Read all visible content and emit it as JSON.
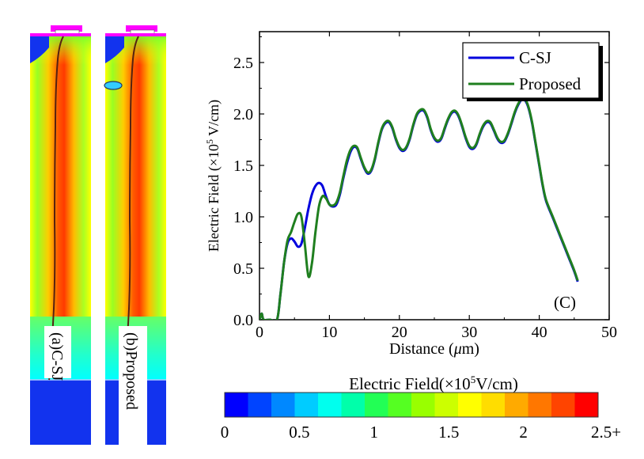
{
  "panels": {
    "a": {
      "label": "(a)C-SJ"
    },
    "b": {
      "label": "(b)Proposed"
    }
  },
  "colorbar": {
    "title_prefix": "Electric Field(×10",
    "title_exp": "5",
    "title_suffix": "V/cm)",
    "ticks": [
      "0",
      "0.5",
      "1",
      "1.5",
      "2",
      "2.5+"
    ],
    "colors": [
      "#0000ff",
      "#0044ff",
      "#0088ff",
      "#00ccff",
      "#00ffee",
      "#00ffaa",
      "#22ff55",
      "#55ff22",
      "#99ff00",
      "#ccff00",
      "#ffff00",
      "#ffdd00",
      "#ffaa00",
      "#ff7700",
      "#ff4400",
      "#ff0000"
    ]
  },
  "chart_data": {
    "type": "line",
    "panel_label": "(C)",
    "xlabel_prefix": "Distance (",
    "xlabel_mu": "μ",
    "xlabel_suffix": "m)",
    "ylabel_prefix": "Electric Field (×10",
    "ylabel_exp": "5",
    "ylabel_suffix": " V/cm)",
    "xlim": [
      0,
      50
    ],
    "ylim": [
      0,
      2.8
    ],
    "xticks": [
      0,
      10,
      20,
      30,
      40,
      50
    ],
    "yticks": [
      0.0,
      0.5,
      1.0,
      1.5,
      2.0,
      2.5
    ],
    "ytick_labels": [
      "0.0",
      "0.5",
      "1.0",
      "1.5",
      "2.0",
      "2.5"
    ],
    "legend_position": "top-right",
    "series": [
      {
        "name": "C-SJ",
        "color": "#0000dd",
        "x": [
          0,
          0.3,
          0.6,
          1.5,
          2.5,
          3.0,
          3.5,
          4.0,
          4.5,
          5.0,
          5.5,
          6.0,
          6.5,
          7.0,
          7.5,
          8.0,
          8.5,
          9.0,
          9.5,
          10.0,
          10.5,
          11.0,
          11.5,
          12.0,
          12.5,
          13.0,
          13.5,
          14.0,
          14.5,
          15.0,
          15.5,
          16.0,
          16.5,
          17.0,
          17.5,
          18.0,
          18.5,
          19.0,
          19.5,
          20.0,
          20.5,
          21.0,
          21.5,
          22.0,
          22.5,
          23.0,
          23.5,
          24.0,
          24.5,
          25.0,
          25.5,
          26.0,
          26.5,
          27.0,
          27.5,
          28.0,
          28.5,
          29.0,
          29.5,
          30.0,
          30.5,
          31.0,
          31.5,
          32.0,
          32.5,
          33.0,
          33.5,
          34.0,
          34.5,
          35.0,
          35.5,
          36.0,
          36.5,
          37.0,
          37.5,
          38.0,
          38.5,
          39.0,
          39.5,
          40.0,
          40.5,
          41.0,
          42.0,
          43.0,
          44.0,
          45.0,
          45.5
        ],
        "values": [
          0.0,
          0.06,
          0.0,
          0.0,
          0.0,
          0.25,
          0.55,
          0.74,
          0.79,
          0.76,
          0.71,
          0.74,
          0.9,
          1.08,
          1.22,
          1.3,
          1.33,
          1.3,
          1.2,
          1.12,
          1.1,
          1.12,
          1.22,
          1.38,
          1.52,
          1.63,
          1.68,
          1.66,
          1.56,
          1.47,
          1.42,
          1.45,
          1.56,
          1.72,
          1.85,
          1.91,
          1.92,
          1.86,
          1.75,
          1.67,
          1.64,
          1.67,
          1.76,
          1.89,
          1.99,
          2.03,
          2.03,
          1.96,
          1.84,
          1.76,
          1.73,
          1.76,
          1.86,
          1.95,
          2.01,
          2.02,
          1.97,
          1.87,
          1.76,
          1.68,
          1.66,
          1.7,
          1.8,
          1.88,
          1.92,
          1.91,
          1.84,
          1.76,
          1.72,
          1.73,
          1.8,
          1.9,
          2.01,
          2.09,
          2.14,
          2.13,
          2.05,
          1.9,
          1.7,
          1.5,
          1.3,
          1.15,
          0.98,
          0.81,
          0.64,
          0.47,
          0.37
        ]
      },
      {
        "name": "Proposed",
        "color": "#1f7f1f",
        "x": [
          0,
          0.3,
          0.6,
          1.5,
          2.5,
          3.0,
          3.5,
          4.0,
          4.5,
          5.0,
          5.5,
          6.0,
          6.5,
          7.0,
          7.5,
          8.0,
          8.5,
          9.0,
          9.5,
          10.0,
          10.5,
          11.0,
          11.5,
          12.0,
          12.5,
          13.0,
          13.5,
          14.0,
          14.5,
          15.0,
          15.5,
          16.0,
          16.5,
          17.0,
          17.5,
          18.0,
          18.5,
          19.0,
          19.5,
          20.0,
          20.5,
          21.0,
          21.5,
          22.0,
          22.5,
          23.0,
          23.5,
          24.0,
          24.5,
          25.0,
          25.5,
          26.0,
          26.5,
          27.0,
          27.5,
          28.0,
          28.5,
          29.0,
          29.5,
          30.0,
          30.5,
          31.0,
          31.5,
          32.0,
          32.5,
          33.0,
          33.5,
          34.0,
          34.5,
          35.0,
          35.5,
          36.0,
          36.5,
          37.0,
          37.5,
          38.0,
          38.5,
          39.0,
          39.5,
          40.0,
          40.5,
          41.0,
          42.0,
          43.0,
          44.0,
          45.0,
          45.5
        ],
        "values": [
          0.0,
          0.06,
          0.0,
          0.0,
          0.0,
          0.25,
          0.55,
          0.77,
          0.85,
          0.95,
          1.03,
          1.0,
          0.72,
          0.42,
          0.55,
          0.85,
          1.1,
          1.2,
          1.18,
          1.12,
          1.11,
          1.14,
          1.24,
          1.4,
          1.55,
          1.65,
          1.69,
          1.67,
          1.57,
          1.48,
          1.43,
          1.46,
          1.57,
          1.73,
          1.86,
          1.92,
          1.93,
          1.87,
          1.76,
          1.68,
          1.65,
          1.68,
          1.77,
          1.9,
          2.0,
          2.04,
          2.04,
          1.97,
          1.85,
          1.77,
          1.74,
          1.77,
          1.87,
          1.96,
          2.02,
          2.03,
          1.98,
          1.88,
          1.77,
          1.69,
          1.67,
          1.71,
          1.81,
          1.89,
          1.93,
          1.92,
          1.85,
          1.77,
          1.73,
          1.74,
          1.81,
          1.91,
          2.02,
          2.1,
          2.15,
          2.14,
          2.06,
          1.91,
          1.71,
          1.51,
          1.31,
          1.16,
          0.99,
          0.82,
          0.65,
          0.48,
          0.38
        ]
      }
    ]
  }
}
